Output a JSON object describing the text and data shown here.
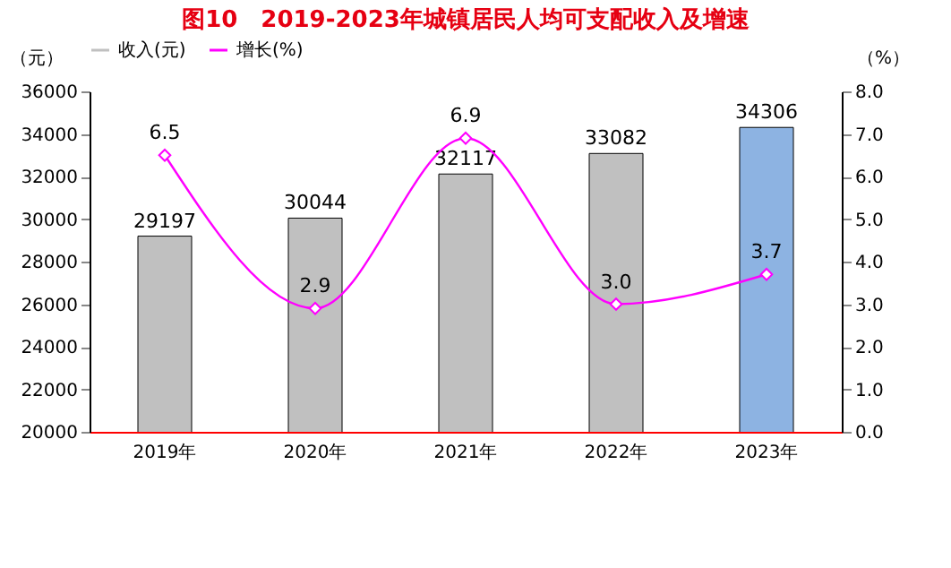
{
  "chart_data": {
    "type": "bar",
    "title": "图10　2019-2023年城镇居民人均可支配收入及增速",
    "categories": [
      "2019年",
      "2020年",
      "2021年",
      "2022年",
      "2023年"
    ],
    "series": [
      {
        "name": "收入(元)",
        "color": "#c0c0c0",
        "colors": [
          "#c0c0c0",
          "#c0c0c0",
          "#c0c0c0",
          "#c0c0c0",
          "#8db3e2"
        ],
        "values": [
          29197,
          30044,
          32117,
          33082,
          34306
        ]
      },
      {
        "name": "增长(%)",
        "type": "line",
        "axis": "y2",
        "color": "#ff00ff",
        "marker": "diamond",
        "values": [
          6.5,
          2.9,
          6.9,
          3.0,
          3.7
        ],
        "value_labels": [
          "6.5",
          "2.9",
          "6.9",
          "3.0",
          "3.7"
        ]
      }
    ],
    "ylabel": "（元）",
    "y2label": "（%）",
    "ylim": [
      20000,
      36000
    ],
    "yticks": [
      20000,
      22000,
      24000,
      26000,
      28000,
      30000,
      32000,
      34000,
      36000
    ],
    "y2lim": [
      0,
      8
    ],
    "y2ticks": [
      {
        "value": 0,
        "label": "0.0"
      },
      {
        "value": 1,
        "label": "1.0"
      },
      {
        "value": 2,
        "label": "2.0"
      },
      {
        "value": 3,
        "label": "3.0"
      },
      {
        "value": 4,
        "label": "4.0"
      },
      {
        "value": 5,
        "label": "5.0"
      },
      {
        "value": 6,
        "label": "6.0"
      },
      {
        "value": 7,
        "label": "7.0"
      },
      {
        "value": 8,
        "label": "8.0"
      }
    ],
    "data_labels": true,
    "grid": false,
    "legend": "top"
  }
}
